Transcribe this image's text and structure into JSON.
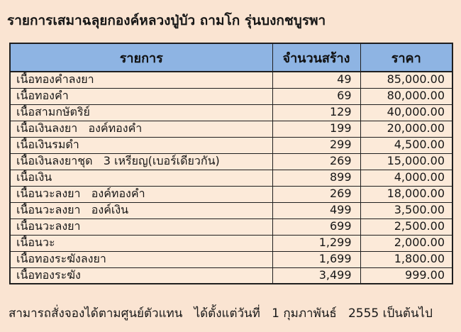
{
  "page": {
    "title": "รายการเสมาฉลุยกองค์หลวงปู่บัว ถามโก รุ่นบงกชบูรพา",
    "footer": "สามารถสั่งจองได้ตามศูนย์ตัวแทน   ได้ตั้งแต่วันที่   1 กุมภาพันธ์   2555 เป็นต้นไป"
  },
  "colors": {
    "page_bg": "#fae4d2",
    "cell_bg": "#fcead9",
    "header_bg": "#8eb4e3",
    "border": "#1f1f1f",
    "text": "#171717"
  },
  "table": {
    "headers": [
      "รายการ",
      "จำนวนสร้าง",
      "ราคา"
    ],
    "rows": [
      {
        "item": "เนื้อทองคำลงยา",
        "qty": "49",
        "price": "85,000.00"
      },
      {
        "item": "เนื้อทองคำ",
        "qty": "69",
        "price": "80,000.00"
      },
      {
        "item": "เนื้อสามกษัตริย์",
        "qty": "129",
        "price": "40,000.00"
      },
      {
        "item": "เนื้อเงินลงยา   องค์ทองคำ",
        "qty": "199",
        "price": "20,000.00"
      },
      {
        "item": "เนื้อเงินรมดำ",
        "qty": "299",
        "price": "4,500.00"
      },
      {
        "item": "เนื้อเงินลงยาชุด   3 เหรียญ(เบอร์เดียวกัน)",
        "qty": "269",
        "price": "15,000.00"
      },
      {
        "item": "เนื้อเงิน",
        "qty": "899",
        "price": "4,000.00"
      },
      {
        "item": "เนื้อนวะลงยา   องค์ทองคำ",
        "qty": "269",
        "price": "18,000.00"
      },
      {
        "item": "เนื้อนวะลงยา   องค์เงิน",
        "qty": "499",
        "price": "3,500.00"
      },
      {
        "item": "เนื้อนวะลงยา",
        "qty": "699",
        "price": "2,500.00"
      },
      {
        "item": "เนื้อนวะ",
        "qty": "1,299",
        "price": "2,000.00"
      },
      {
        "item": "เนื้อทองระฆังลงยา",
        "qty": "1,699",
        "price": "1,800.00"
      },
      {
        "item": "เนื้อทองระฆัง",
        "qty": "3,499",
        "price": "999.00"
      }
    ]
  }
}
